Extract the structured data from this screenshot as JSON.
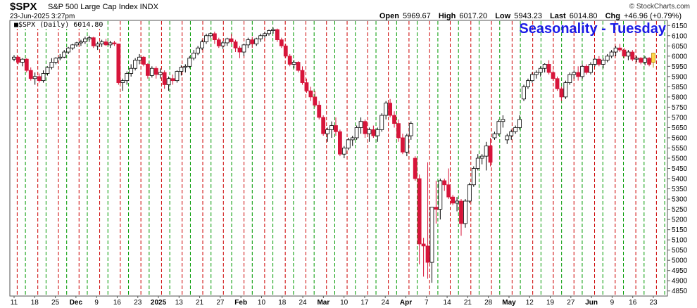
{
  "header": {
    "symbol": "$SPX",
    "name": "S&P 500 Large Cap Index INDX",
    "datetime": "23-Jun-2025 3:27pm",
    "brand": "© StockCharts.com",
    "open_label": "Open",
    "open": "5969.67",
    "high_label": "High",
    "high": "6017.20",
    "low_label": "Low",
    "low": "5943.23",
    "last_label": "Last",
    "last": "6014.80",
    "chg_label": "Chg",
    "chg": "+46.96 (+0.79%)",
    "legend": "■$SPX (Daily) 6014.80",
    "overlay_title": "Seasonality - Tuesday"
  },
  "colors": {
    "up_candle": "#ffffff",
    "down_candle": "#d7153a",
    "tuesday_line": "#cc0000",
    "other_line": "#009900",
    "overlay_title": "#1a1ae6",
    "last_candle": "#ffd84a"
  },
  "chart_data": {
    "type": "candlestick",
    "title": "Seasonality - Tuesday",
    "x_ticks": [
      "11",
      "18",
      "25",
      "Dec",
      "9",
      "16",
      "23",
      "2025",
      "13",
      "21",
      "27",
      "Feb",
      "10",
      "18",
      "24",
      "Mar",
      "10",
      "17",
      "24",
      "Apr",
      "7",
      "14",
      "21",
      "28",
      "May",
      "12",
      "19",
      "27",
      "Jun",
      "9",
      "16",
      "23"
    ],
    "y_ticks": [
      4850,
      4900,
      4950,
      5000,
      5050,
      5100,
      5150,
      5200,
      5250,
      5300,
      5350,
      5400,
      5450,
      5500,
      5550,
      5600,
      5650,
      5700,
      5750,
      5800,
      5850,
      5900,
      5950,
      6000,
      6050,
      6100,
      6150
    ],
    "ylim": [
      4825,
      6175
    ],
    "y_axis": "right",
    "grid": true,
    "vertical_line_pattern": "red dashed line on each Tuesday, green dashed lines on other weekly markers",
    "ohlc": [
      [
        5985,
        6005,
        5975,
        5995
      ],
      [
        5995,
        6000,
        5960,
        5970
      ],
      [
        5970,
        5990,
        5950,
        5985
      ],
      [
        5985,
        5990,
        5920,
        5930
      ],
      [
        5930,
        5945,
        5880,
        5890
      ],
      [
        5890,
        5920,
        5860,
        5900
      ],
      [
        5900,
        5915,
        5870,
        5880
      ],
      [
        5880,
        5930,
        5870,
        5915
      ],
      [
        5915,
        5950,
        5905,
        5945
      ],
      [
        5945,
        5990,
        5935,
        5970
      ],
      [
        5970,
        5995,
        5960,
        5990
      ],
      [
        5990,
        6010,
        5980,
        5995
      ],
      [
        5995,
        6030,
        5990,
        6020
      ],
      [
        6020,
        6045,
        6010,
        6040
      ],
      [
        6040,
        6060,
        6030,
        6055
      ],
      [
        6055,
        6070,
        6045,
        6065
      ],
      [
        6065,
        6080,
        6050,
        6070
      ],
      [
        6070,
        6095,
        6060,
        6085
      ],
      [
        6085,
        6100,
        6070,
        6090
      ],
      [
        6090,
        6095,
        6040,
        6050
      ],
      [
        6050,
        6070,
        6030,
        6060
      ],
      [
        6060,
        6080,
        6045,
        6070
      ],
      [
        6070,
        6085,
        6050,
        6055
      ],
      [
        6055,
        6075,
        6040,
        6065
      ],
      [
        6065,
        6075,
        6050,
        6060
      ],
      [
        6060,
        6060,
        5860,
        5870
      ],
      [
        5870,
        5890,
        5830,
        5880
      ],
      [
        5880,
        5925,
        5860,
        5915
      ],
      [
        5915,
        5960,
        5900,
        5940
      ],
      [
        5940,
        5990,
        5930,
        5980
      ],
      [
        5980,
        6010,
        5960,
        5995
      ],
      [
        5995,
        6000,
        5950,
        5960
      ],
      [
        5960,
        5965,
        5890,
        5905
      ],
      [
        5905,
        5950,
        5895,
        5940
      ],
      [
        5940,
        5950,
        5890,
        5910
      ],
      [
        5910,
        5940,
        5890,
        5920
      ],
      [
        5920,
        5930,
        5840,
        5860
      ],
      [
        5860,
        5900,
        5830,
        5890
      ],
      [
        5890,
        5910,
        5860,
        5880
      ],
      [
        5880,
        5930,
        5870,
        5925
      ],
      [
        5925,
        5955,
        5905,
        5945
      ],
      [
        5945,
        5960,
        5920,
        5950
      ],
      [
        5950,
        6000,
        5940,
        5990
      ],
      [
        5990,
        6030,
        5980,
        6015
      ],
      [
        6015,
        6050,
        6005,
        6040
      ],
      [
        6040,
        6080,
        6030,
        6070
      ],
      [
        6070,
        6110,
        6060,
        6100
      ],
      [
        6100,
        6115,
        6090,
        6110
      ],
      [
        6110,
        6120,
        6060,
        6080
      ],
      [
        6080,
        6090,
        6040,
        6050
      ],
      [
        6050,
        6075,
        6035,
        6065
      ],
      [
        6065,
        6090,
        6050,
        6085
      ],
      [
        6085,
        6110,
        6060,
        6070
      ],
      [
        6070,
        6080,
        6020,
        6040
      ],
      [
        6040,
        6050,
        5990,
        6020
      ],
      [
        6020,
        6060,
        6000,
        6055
      ],
      [
        6055,
        6090,
        6040,
        6080
      ],
      [
        6080,
        6095,
        6040,
        6060
      ],
      [
        6060,
        6090,
        6050,
        6085
      ],
      [
        6085,
        6110,
        6070,
        6100
      ],
      [
        6100,
        6120,
        6090,
        6110
      ],
      [
        6110,
        6130,
        6100,
        6125
      ],
      [
        6125,
        6140,
        6110,
        6130
      ],
      [
        6130,
        6135,
        6070,
        6080
      ],
      [
        6080,
        6090,
        6040,
        6050
      ],
      [
        6050,
        6060,
        5990,
        6000
      ],
      [
        6000,
        6010,
        5950,
        5960
      ],
      [
        5960,
        5980,
        5940,
        5970
      ],
      [
        5970,
        5975,
        5920,
        5930
      ],
      [
        5930,
        5950,
        5860,
        5870
      ],
      [
        5870,
        5890,
        5820,
        5830
      ],
      [
        5830,
        5850,
        5780,
        5800
      ],
      [
        5800,
        5830,
        5750,
        5760
      ],
      [
        5760,
        5780,
        5690,
        5700
      ],
      [
        5700,
        5710,
        5610,
        5620
      ],
      [
        5620,
        5650,
        5580,
        5640
      ],
      [
        5640,
        5680,
        5600,
        5660
      ],
      [
        5660,
        5700,
        5610,
        5630
      ],
      [
        5630,
        5640,
        5510,
        5520
      ],
      [
        5520,
        5560,
        5500,
        5550
      ],
      [
        5550,
        5600,
        5540,
        5590
      ],
      [
        5590,
        5610,
        5560,
        5600
      ],
      [
        5600,
        5660,
        5590,
        5650
      ],
      [
        5650,
        5700,
        5620,
        5680
      ],
      [
        5680,
        5690,
        5600,
        5620
      ],
      [
        5620,
        5650,
        5580,
        5640
      ],
      [
        5640,
        5660,
        5600,
        5610
      ],
      [
        5610,
        5650,
        5580,
        5640
      ],
      [
        5640,
        5720,
        5630,
        5710
      ],
      [
        5710,
        5780,
        5690,
        5770
      ],
      [
        5770,
        5790,
        5700,
        5710
      ],
      [
        5710,
        5730,
        5650,
        5670
      ],
      [
        5670,
        5690,
        5580,
        5600
      ],
      [
        5600,
        5620,
        5520,
        5530
      ],
      [
        5530,
        5620,
        5510,
        5610
      ],
      [
        5610,
        5680,
        5590,
        5670
      ],
      [
        5500,
        5510,
        5390,
        5400
      ],
      [
        5400,
        5420,
        4980,
        5080
      ],
      [
        5080,
        5110,
        4920,
        5070
      ],
      [
        5070,
        5480,
        4910,
        4990
      ],
      [
        4990,
        5260,
        4890,
        5260
      ],
      [
        5260,
        5390,
        5180,
        5250
      ],
      [
        5250,
        5400,
        5200,
        5390
      ],
      [
        5390,
        5400,
        5340,
        5370
      ],
      [
        5370,
        5450,
        5300,
        5310
      ],
      [
        5310,
        5320,
        5270,
        5280
      ],
      [
        5280,
        5310,
        5240,
        5290
      ],
      [
        5290,
        5300,
        5120,
        5180
      ],
      [
        5180,
        5300,
        5160,
        5290
      ],
      [
        5290,
        5380,
        5280,
        5370
      ],
      [
        5370,
        5460,
        5360,
        5450
      ],
      [
        5450,
        5520,
        5440,
        5500
      ],
      [
        5500,
        5520,
        5470,
        5510
      ],
      [
        5510,
        5580,
        5440,
        5560
      ],
      [
        5560,
        5600,
        5460,
        5480
      ],
      [
        5600,
        5630,
        5590,
        5620
      ],
      [
        5620,
        5690,
        5610,
        5680
      ],
      [
        5680,
        5710,
        5650,
        5690
      ],
      [
        5590,
        5620,
        5570,
        5610
      ],
      [
        5610,
        5640,
        5590,
        5630
      ],
      [
        5630,
        5660,
        5620,
        5650
      ],
      [
        5650,
        5710,
        5640,
        5690
      ],
      [
        5790,
        5860,
        5780,
        5850
      ],
      [
        5850,
        5890,
        5840,
        5880
      ],
      [
        5880,
        5920,
        5870,
        5910
      ],
      [
        5910,
        5930,
        5890,
        5920
      ],
      [
        5920,
        5950,
        5900,
        5940
      ],
      [
        5940,
        5965,
        5920,
        5960
      ],
      [
        5960,
        5980,
        5910,
        5920
      ],
      [
        5920,
        5930,
        5880,
        5890
      ],
      [
        5890,
        5900,
        5830,
        5840
      ],
      [
        5840,
        5850,
        5780,
        5800
      ],
      [
        5800,
        5880,
        5790,
        5870
      ],
      [
        5870,
        5920,
        5860,
        5910
      ],
      [
        5910,
        5930,
        5890,
        5920
      ],
      [
        5920,
        5950,
        5880,
        5900
      ],
      [
        5900,
        5960,
        5890,
        5950
      ],
      [
        5950,
        5960,
        5910,
        5920
      ],
      [
        5920,
        5970,
        5910,
        5960
      ],
      [
        5960,
        5990,
        5950,
        5985
      ],
      [
        5985,
        6000,
        5950,
        5960
      ],
      [
        5960,
        5990,
        5940,
        5980
      ],
      [
        5980,
        6010,
        5970,
        6000
      ],
      [
        6000,
        6030,
        5990,
        6020
      ],
      [
        6020,
        6050,
        6000,
        6040
      ],
      [
        6040,
        6060,
        6020,
        6030
      ],
      [
        6030,
        6040,
        5990,
        6000
      ],
      [
        6000,
        6030,
        5980,
        6020
      ],
      [
        6020,
        6030,
        5975,
        5985
      ],
      [
        5985,
        6000,
        5970,
        5990
      ],
      [
        5990,
        5995,
        5960,
        5970
      ],
      [
        5970,
        6000,
        5955,
        5990
      ],
      [
        5990,
        5995,
        5950,
        5960
      ],
      [
        5969.67,
        6017.2,
        5943.23,
        6014.8
      ]
    ]
  }
}
